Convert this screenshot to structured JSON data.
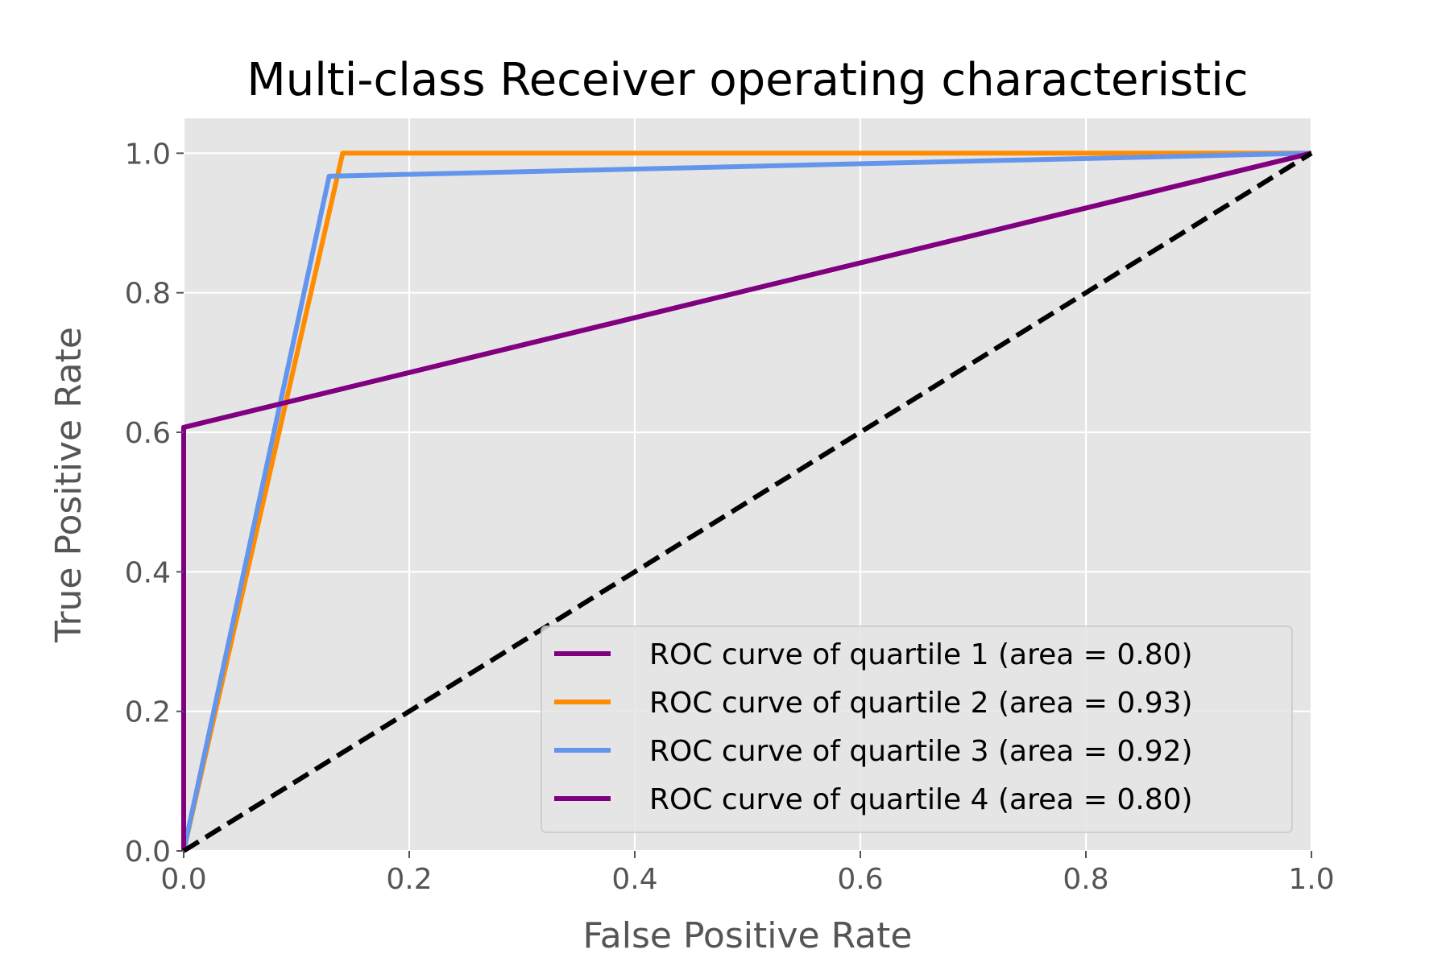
{
  "chart_data": {
    "type": "line",
    "title": "Multi-class Receiver operating characteristic",
    "xlabel": "False Positive Rate",
    "ylabel": "True Positive Rate",
    "xlim": [
      0.0,
      1.0
    ],
    "ylim": [
      0.0,
      1.05
    ],
    "x_ticks": [
      0.0,
      0.2,
      0.4,
      0.6,
      0.8,
      1.0
    ],
    "x_tick_labels": [
      "0.0",
      "0.2",
      "0.4",
      "0.6",
      "0.8",
      "1.0"
    ],
    "y_ticks": [
      0.0,
      0.2,
      0.4,
      0.6,
      0.8,
      1.0
    ],
    "y_tick_labels": [
      "0.0",
      "0.2",
      "0.4",
      "0.6",
      "0.8",
      "1.0"
    ],
    "grid": true,
    "background": "#e5e5e5",
    "legend_position": "lower-right",
    "series": [
      {
        "name": "ROC curve of quartile 1 (area = 0.80)",
        "color": "#800080",
        "dash": "solid",
        "x": [
          0.0,
          0.0,
          1.0
        ],
        "y": [
          0.0,
          0.607,
          1.0
        ]
      },
      {
        "name": "ROC curve of quartile 2 (area = 0.93)",
        "color": "#ff8c00",
        "dash": "solid",
        "x": [
          0.0,
          0.141,
          1.0
        ],
        "y": [
          0.0,
          1.0,
          1.0
        ]
      },
      {
        "name": "ROC curve of quartile 3 (area = 0.92)",
        "color": "#6495ed",
        "dash": "solid",
        "x": [
          0.0,
          0.129,
          1.0
        ],
        "y": [
          0.0,
          0.967,
          1.0
        ]
      },
      {
        "name": "ROC curve of quartile 4 (area = 0.80)",
        "color": "#800080",
        "dash": "solid",
        "x": [
          0.0,
          0.0,
          1.0
        ],
        "y": [
          0.0,
          0.607,
          1.0
        ]
      }
    ],
    "reference_line": {
      "color": "#000000",
      "dash": "dashed",
      "x": [
        0.0,
        1.0
      ],
      "y": [
        0.0,
        1.0
      ]
    }
  }
}
